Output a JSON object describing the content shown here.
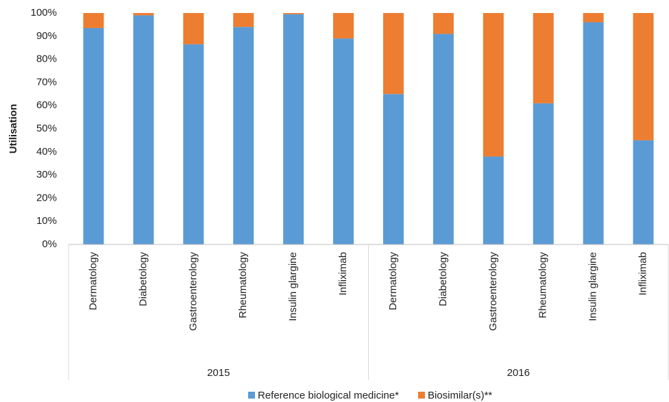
{
  "chart_data": {
    "type": "stacked_bar",
    "ylabel": "Utilisation",
    "categories": [
      "Dermatology",
      "Diabetology",
      "Gastroenterology",
      "Rheumatology",
      "Insulin glargine",
      "Infliximab",
      "Dermatology",
      "Diabetology",
      "Gastroenterology",
      "Rheumatology",
      "Insulin glargine",
      "Infliximab"
    ],
    "groups": [
      "2015",
      "2016"
    ],
    "series": [
      {
        "name": "Reference biological medicine*",
        "color": "#5b9bd5",
        "values": [
          93.5,
          99,
          86.5,
          94,
          99.5,
          89,
          65,
          91,
          38,
          61,
          96,
          45
        ]
      },
      {
        "name": "Biosimilar(s)**",
        "color": "#ed7d31",
        "values": [
          6.5,
          1,
          13.5,
          6,
          0.5,
          11,
          35,
          9,
          62,
          39,
          4,
          55
        ]
      }
    ],
    "ylim": [
      0,
      100
    ],
    "yticks": [
      {
        "value": 0,
        "label": "0%"
      },
      {
        "value": 10,
        "label": "10%"
      },
      {
        "value": 20,
        "label": "20%"
      },
      {
        "value": 30,
        "label": "30%"
      },
      {
        "value": 40,
        "label": "40%"
      },
      {
        "value": 50,
        "label": "50%"
      },
      {
        "value": 60,
        "label": "60%"
      },
      {
        "value": 70,
        "label": "70%"
      },
      {
        "value": 80,
        "label": "80%"
      },
      {
        "value": 90,
        "label": "90%"
      },
      {
        "value": 100,
        "label": "100%"
      }
    ],
    "grid": false,
    "legend": "bottom"
  }
}
